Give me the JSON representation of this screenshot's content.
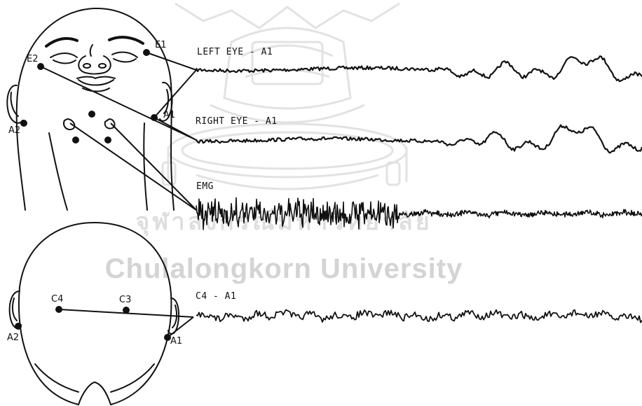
{
  "watermark": {
    "thai_text": "จุฬาลงกรณ์มหาวิทยาลัย",
    "english_text": "Chulalongkorn University",
    "color": "#d4d4d4"
  },
  "electrodes": {
    "e1": "E1",
    "e2": "E2",
    "a1_face": "A1",
    "a2_face": "A2",
    "c4": "C4",
    "c3": "C3",
    "a1_top": "A1",
    "a2_top": "A2"
  },
  "channels": [
    {
      "label": "LEFT EYE - A1"
    },
    {
      "label": "RIGHT EYE - A1"
    },
    {
      "label": "EMG"
    },
    {
      "label": "C4 - A1"
    }
  ]
}
